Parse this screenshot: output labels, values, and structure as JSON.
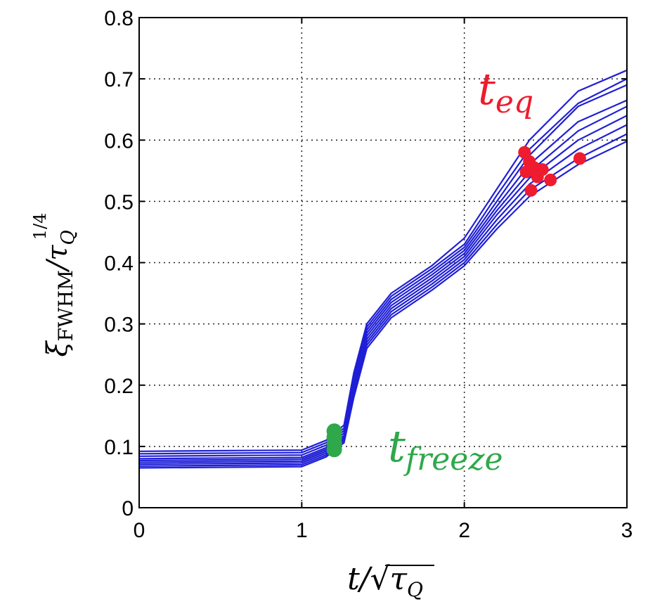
{
  "chart_data": {
    "type": "line",
    "title": "",
    "xlabel": "t/√τ_Q",
    "ylabel": "ξ_FWHM/τ_Q^(1/4)",
    "xlim": [
      0,
      3
    ],
    "ylim": [
      0,
      0.8
    ],
    "x_ticks": [
      "0",
      "1",
      "2",
      "3"
    ],
    "y_ticks": [
      "0",
      "0.1",
      "0.2",
      "0.3",
      "0.4",
      "0.5",
      "0.6",
      "0.7",
      "0.8"
    ],
    "grid": true,
    "line_color": "#1f1fd6",
    "series": [
      {
        "values": [
          [
            0,
            0.092
          ],
          [
            1.0,
            0.094
          ],
          [
            1.15,
            0.11
          ],
          [
            1.26,
            0.135
          ],
          [
            1.32,
            0.22
          ],
          [
            1.4,
            0.3
          ],
          [
            1.55,
            0.35
          ],
          [
            1.8,
            0.395
          ],
          [
            2.0,
            0.44
          ],
          [
            2.2,
            0.52
          ],
          [
            2.4,
            0.6
          ],
          [
            2.7,
            0.68
          ],
          [
            3.0,
            0.714
          ]
        ]
      },
      {
        "values": [
          [
            0,
            0.088
          ],
          [
            1.0,
            0.09
          ],
          [
            1.15,
            0.106
          ],
          [
            1.26,
            0.13
          ],
          [
            1.32,
            0.215
          ],
          [
            1.4,
            0.295
          ],
          [
            1.55,
            0.345
          ],
          [
            1.8,
            0.39
          ],
          [
            2.0,
            0.43
          ],
          [
            2.2,
            0.51
          ],
          [
            2.4,
            0.585
          ],
          [
            2.7,
            0.66
          ],
          [
            3.0,
            0.7
          ]
        ]
      },
      {
        "values": [
          [
            0,
            0.084
          ],
          [
            1.0,
            0.086
          ],
          [
            1.15,
            0.102
          ],
          [
            1.26,
            0.126
          ],
          [
            1.32,
            0.21
          ],
          [
            1.4,
            0.29
          ],
          [
            1.55,
            0.34
          ],
          [
            1.8,
            0.385
          ],
          [
            2.0,
            0.425
          ],
          [
            2.2,
            0.5
          ],
          [
            2.4,
            0.575
          ],
          [
            2.7,
            0.655
          ],
          [
            3.0,
            0.69
          ]
        ]
      },
      {
        "values": [
          [
            0,
            0.08
          ],
          [
            1.0,
            0.082
          ],
          [
            1.15,
            0.098
          ],
          [
            1.26,
            0.122
          ],
          [
            1.32,
            0.205
          ],
          [
            1.4,
            0.285
          ],
          [
            1.55,
            0.335
          ],
          [
            1.8,
            0.38
          ],
          [
            2.0,
            0.42
          ],
          [
            2.2,
            0.492
          ],
          [
            2.4,
            0.56
          ],
          [
            2.7,
            0.63
          ],
          [
            3.0,
            0.665
          ]
        ]
      },
      {
        "values": [
          [
            0,
            0.077
          ],
          [
            1.0,
            0.079
          ],
          [
            1.15,
            0.095
          ],
          [
            1.26,
            0.118
          ],
          [
            1.32,
            0.2
          ],
          [
            1.4,
            0.28
          ],
          [
            1.55,
            0.33
          ],
          [
            1.8,
            0.375
          ],
          [
            2.0,
            0.415
          ],
          [
            2.2,
            0.485
          ],
          [
            2.4,
            0.548
          ],
          [
            2.7,
            0.615
          ],
          [
            3.0,
            0.655
          ]
        ]
      },
      {
        "values": [
          [
            0,
            0.074
          ],
          [
            1.0,
            0.076
          ],
          [
            1.15,
            0.092
          ],
          [
            1.26,
            0.115
          ],
          [
            1.32,
            0.195
          ],
          [
            1.4,
            0.275
          ],
          [
            1.55,
            0.325
          ],
          [
            1.8,
            0.37
          ],
          [
            2.0,
            0.41
          ],
          [
            2.2,
            0.478
          ],
          [
            2.4,
            0.538
          ],
          [
            2.7,
            0.6
          ],
          [
            3.0,
            0.64
          ]
        ]
      },
      {
        "values": [
          [
            0,
            0.071
          ],
          [
            1.0,
            0.073
          ],
          [
            1.15,
            0.089
          ],
          [
            1.26,
            0.112
          ],
          [
            1.32,
            0.19
          ],
          [
            1.4,
            0.27
          ],
          [
            1.55,
            0.32
          ],
          [
            1.8,
            0.365
          ],
          [
            2.0,
            0.405
          ],
          [
            2.2,
            0.47
          ],
          [
            2.4,
            0.528
          ],
          [
            2.7,
            0.585
          ],
          [
            3.0,
            0.625
          ]
        ]
      },
      {
        "values": [
          [
            0,
            0.068
          ],
          [
            1.0,
            0.07
          ],
          [
            1.15,
            0.086
          ],
          [
            1.26,
            0.109
          ],
          [
            1.32,
            0.185
          ],
          [
            1.4,
            0.265
          ],
          [
            1.55,
            0.315
          ],
          [
            1.8,
            0.36
          ],
          [
            2.0,
            0.4
          ],
          [
            2.2,
            0.462
          ],
          [
            2.4,
            0.518
          ],
          [
            2.7,
            0.57
          ],
          [
            3.0,
            0.61
          ]
        ]
      },
      {
        "values": [
          [
            0,
            0.065
          ],
          [
            1.0,
            0.067
          ],
          [
            1.15,
            0.083
          ],
          [
            1.26,
            0.106
          ],
          [
            1.32,
            0.18
          ],
          [
            1.4,
            0.26
          ],
          [
            1.55,
            0.31
          ],
          [
            1.8,
            0.355
          ],
          [
            2.0,
            0.395
          ],
          [
            2.2,
            0.455
          ],
          [
            2.4,
            0.508
          ],
          [
            2.7,
            0.56
          ],
          [
            3.0,
            0.598
          ]
        ]
      }
    ],
    "freeze_points": {
      "label": "t_freeze",
      "color": "#2ea84a",
      "points": [
        [
          1.2,
          0.095
        ],
        [
          1.2,
          0.105
        ],
        [
          1.2,
          0.115
        ],
        [
          1.2,
          0.125
        ]
      ]
    },
    "eq_points": {
      "label": "t_eq",
      "color": "#ee1c2e",
      "points": [
        [
          2.37,
          0.58
        ],
        [
          2.4,
          0.565
        ],
        [
          2.43,
          0.555
        ],
        [
          2.38,
          0.548
        ],
        [
          2.45,
          0.54
        ],
        [
          2.48,
          0.552
        ],
        [
          2.53,
          0.535
        ],
        [
          2.41,
          0.518
        ],
        [
          2.71,
          0.57
        ]
      ]
    }
  }
}
